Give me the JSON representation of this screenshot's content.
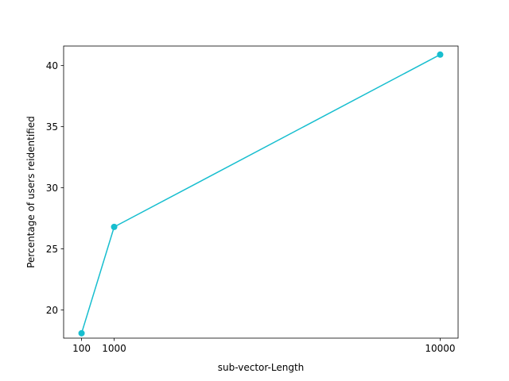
{
  "chart_data": {
    "type": "line",
    "title": "",
    "xlabel": "sub-vector-Length",
    "ylabel": "Percentage of users reidentified",
    "x": [
      100,
      1000,
      10000
    ],
    "series": [
      {
        "values": [
          18.1,
          26.8,
          40.9
        ]
      }
    ],
    "xticks": [
      100,
      1000,
      10000
    ],
    "xtick_labels": [
      "100",
      "1000",
      "10000"
    ],
    "yticks": [
      20,
      25,
      30,
      35,
      40
    ],
    "ytick_labels": [
      "20",
      "25",
      "30",
      "35",
      "40"
    ],
    "xlim": [
      -395,
      10495
    ],
    "ylim": [
      17.7,
      41.6
    ],
    "grid": false,
    "legend": "none",
    "colors": {
      "series": "#17becf",
      "axes": "#000000",
      "background": "#ffffff"
    }
  }
}
